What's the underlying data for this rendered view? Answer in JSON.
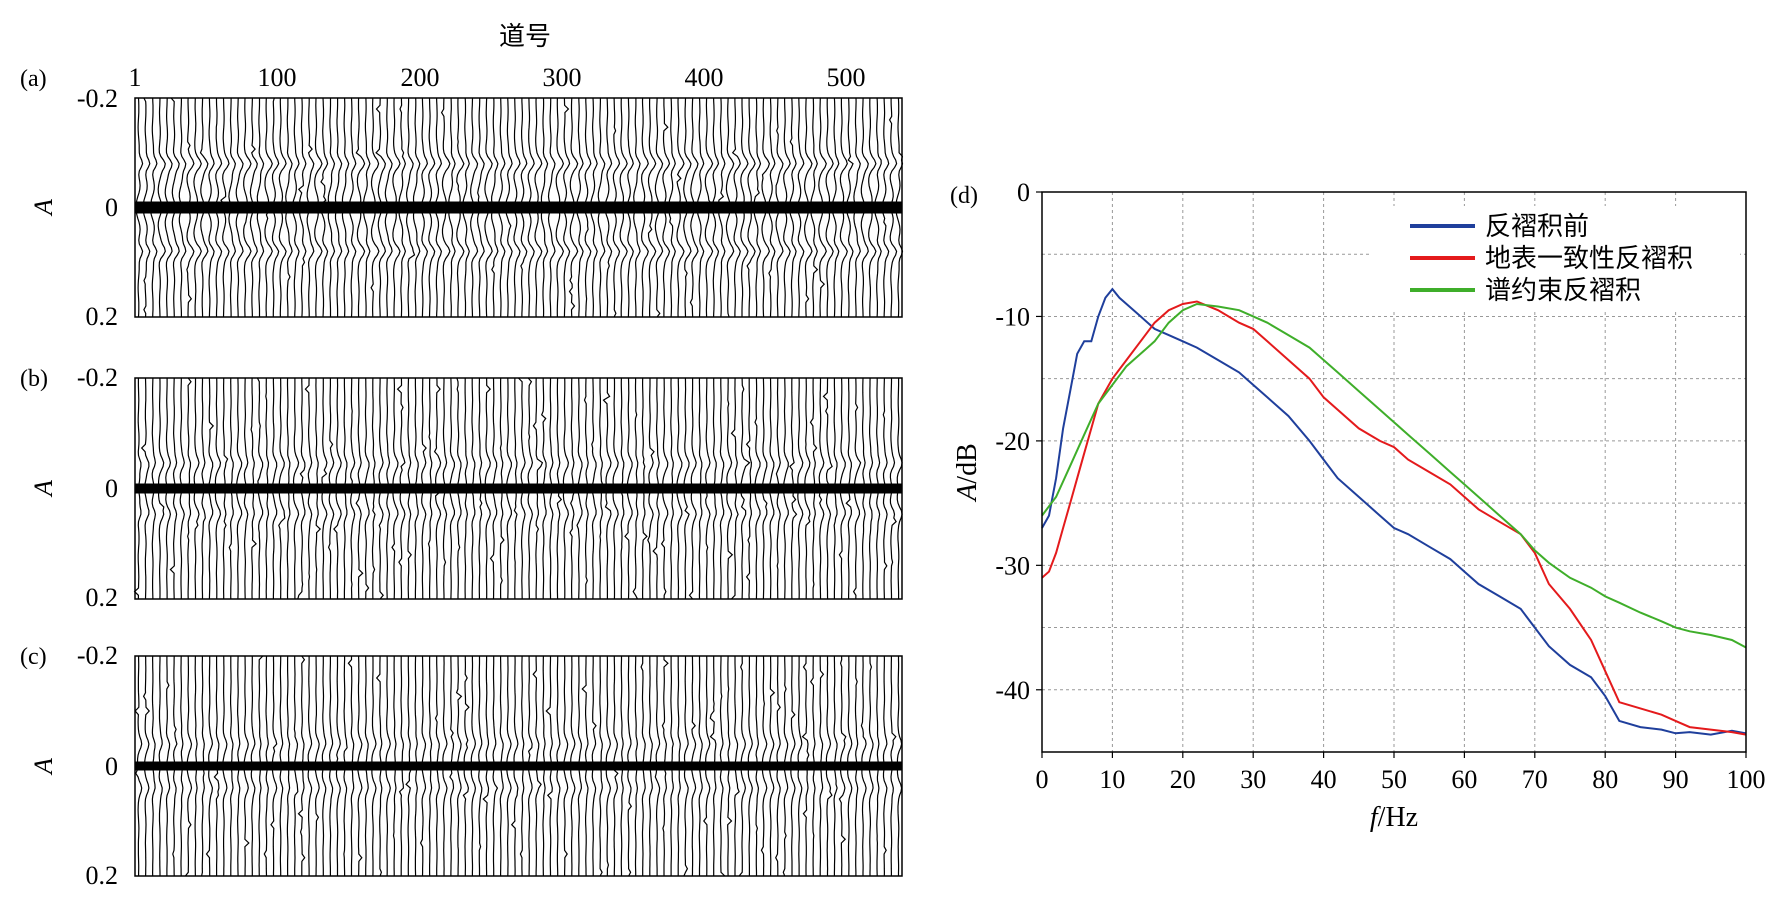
{
  "chart_data": [
    {
      "panel": "(a)",
      "type": "wiggle",
      "xlabel": "道号",
      "ylabel": "A",
      "xticks": [
        "1",
        "100",
        "200",
        "300",
        "400",
        "500"
      ],
      "xtick_values": [
        1,
        100,
        200,
        300,
        400,
        500
      ],
      "xlim": [
        1,
        540
      ],
      "yticks": [
        "-0.2",
        "0",
        "0.2"
      ],
      "ytick_values": [
        -0.2,
        0,
        0.2
      ],
      "ylim": [
        -0.2,
        0.2
      ],
      "trace_count": 540
    },
    {
      "panel": "(b)",
      "type": "wiggle",
      "ylabel": "A",
      "xlim": [
        1,
        540
      ],
      "yticks": [
        "-0.2",
        "0",
        "0.2"
      ],
      "ytick_values": [
        -0.2,
        0,
        0.2
      ],
      "ylim": [
        -0.2,
        0.2
      ],
      "trace_count": 540
    },
    {
      "panel": "(c)",
      "type": "wiggle",
      "ylabel": "A",
      "xlim": [
        1,
        540
      ],
      "yticks": [
        "-0.2",
        "0",
        "0.2"
      ],
      "ytick_values": [
        -0.2,
        0,
        0.2
      ],
      "ylim": [
        -0.2,
        0.2
      ],
      "trace_count": 540
    },
    {
      "panel": "(d)",
      "type": "line",
      "xlabel_italic": "f",
      "xlabel_unit": "/Hz",
      "ylabel_italic": "A",
      "ylabel_unit": "/dB",
      "xlim": [
        0,
        100
      ],
      "ylim": [
        -45,
        0
      ],
      "xticks": [
        "0",
        "10",
        "20",
        "30",
        "40",
        "50",
        "60",
        "70",
        "80",
        "90",
        "100"
      ],
      "xtick_values": [
        0,
        10,
        20,
        30,
        40,
        50,
        60,
        70,
        80,
        90,
        100
      ],
      "yticks": [
        "0",
        "-10",
        "-20",
        "-30",
        "-40"
      ],
      "ytick_values": [
        0,
        -10,
        -20,
        -30,
        -40
      ],
      "grid": true,
      "legend_position": "top-right",
      "series": [
        {
          "name": "反褶积前",
          "color": "#1f3f9c",
          "x": [
            0,
            1,
            2,
            3,
            4,
            5,
            6,
            7,
            8,
            9,
            10,
            11,
            12,
            14,
            16,
            18,
            20,
            22,
            25,
            28,
            30,
            32,
            35,
            38,
            40,
            42,
            45,
            48,
            50,
            52,
            55,
            58,
            60,
            62,
            65,
            68,
            70,
            72,
            75,
            78,
            80,
            82,
            85,
            88,
            90,
            92,
            95,
            98,
            100
          ],
          "y": [
            -27,
            -26,
            -23,
            -19,
            -16,
            -13,
            -12,
            -12,
            -10,
            -8.5,
            -7.8,
            -8.5,
            -9,
            -10,
            -11,
            -11.5,
            -12,
            -12.5,
            -13.5,
            -14.5,
            -15.5,
            -16.5,
            -18,
            -20,
            -21.5,
            -23,
            -24.5,
            -26,
            -27,
            -27.5,
            -28.5,
            -29.5,
            -30.5,
            -31.5,
            -32.5,
            -33.5,
            -35,
            -36.5,
            -38,
            -39,
            -40.5,
            -42.5,
            -43,
            -43.2,
            -43.5,
            -43.4,
            -43.6,
            -43.3,
            -43.5
          ]
        },
        {
          "name": "地表一致性反褶积",
          "color": "#e41a1c",
          "x": [
            0,
            1,
            2,
            3,
            4,
            5,
            6,
            7,
            8,
            10,
            12,
            14,
            16,
            18,
            20,
            22,
            25,
            28,
            30,
            32,
            35,
            38,
            40,
            42,
            45,
            48,
            50,
            52,
            55,
            58,
            60,
            62,
            65,
            68,
            70,
            72,
            75,
            78,
            80,
            82,
            85,
            88,
            90,
            92,
            95,
            98,
            100
          ],
          "y": [
            -31,
            -30.5,
            -29,
            -27,
            -25,
            -23,
            -21,
            -19,
            -17,
            -15,
            -13.5,
            -12,
            -10.5,
            -9.5,
            -9,
            -8.8,
            -9.5,
            -10.5,
            -11,
            -12,
            -13.5,
            -15,
            -16.5,
            -17.5,
            -19,
            -20,
            -20.5,
            -21.5,
            -22.5,
            -23.5,
            -24.5,
            -25.5,
            -26.5,
            -27.5,
            -29,
            -31.5,
            -33.5,
            -36,
            -38.5,
            -41,
            -41.5,
            -42,
            -42.5,
            -43,
            -43.2,
            -43.4,
            -43.6
          ]
        },
        {
          "name": "谱约束反褶积",
          "color": "#3fae2a",
          "x": [
            0,
            2,
            4,
            6,
            8,
            10,
            12,
            14,
            16,
            18,
            20,
            22,
            25,
            28,
            30,
            32,
            35,
            38,
            40,
            42,
            45,
            48,
            50,
            52,
            55,
            58,
            60,
            62,
            65,
            68,
            70,
            72,
            75,
            78,
            80,
            82,
            85,
            88,
            90,
            92,
            95,
            98,
            100
          ],
          "y": [
            -26,
            -24.5,
            -22,
            -19.5,
            -17,
            -15.5,
            -14,
            -13,
            -12,
            -10.5,
            -9.5,
            -9,
            -9.2,
            -9.5,
            -10,
            -10.5,
            -11.5,
            -12.5,
            -13.5,
            -14.5,
            -16,
            -17.5,
            -18.5,
            -19.5,
            -21,
            -22.5,
            -23.5,
            -24.5,
            -26,
            -27.5,
            -28.8,
            -29.8,
            -31,
            -31.8,
            -32.5,
            -33,
            -33.8,
            -34.5,
            -35,
            -35.3,
            -35.6,
            -36,
            -36.6
          ]
        }
      ]
    }
  ]
}
